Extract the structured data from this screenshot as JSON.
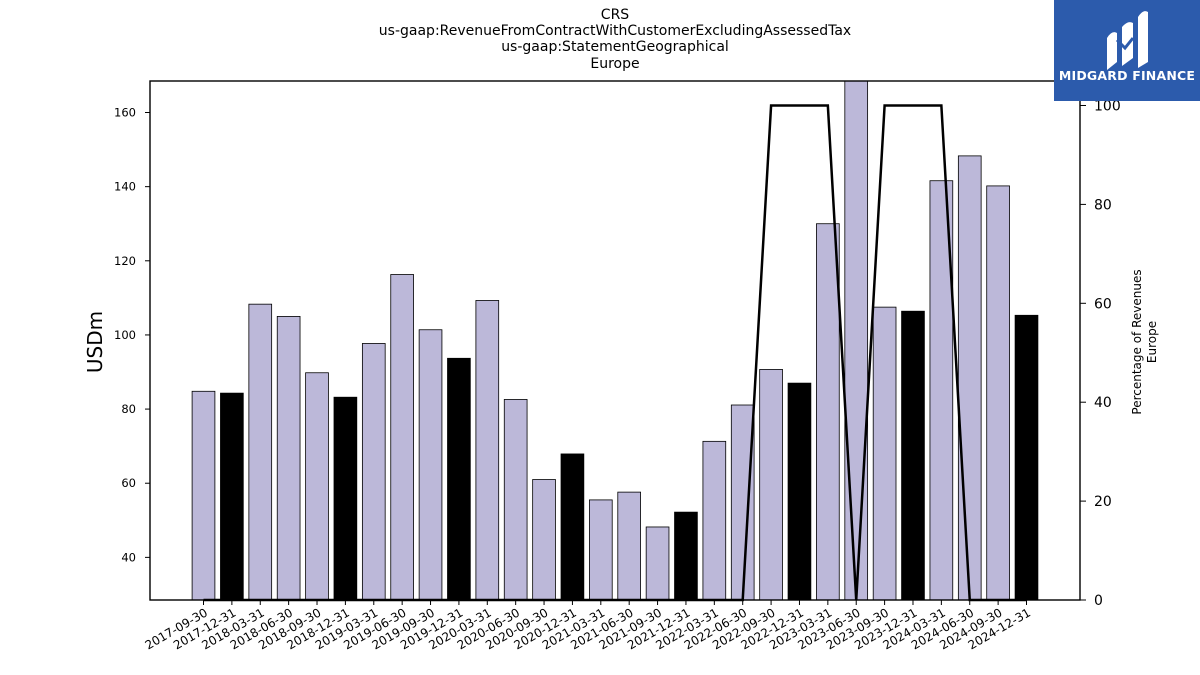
{
  "header": {
    "title_lines": [
      "CRS",
      "us-gaap:RevenueFromContractWithCustomerExcludingAssessedTax",
      "us-gaap:StatementGeographical",
      "Europe"
    ]
  },
  "logo": {
    "text": "MIDGARD FINANCE",
    "color": "#2c5bac"
  },
  "chart_data": {
    "type": "bar",
    "ylabel": "USDm",
    "y2label_lines": [
      "Percentage of Revenues",
      "Europe"
    ],
    "ylim": [
      28.5,
      168.5
    ],
    "y_ticks": [
      40,
      60,
      80,
      100,
      120,
      140,
      160
    ],
    "y2lim": [
      0,
      100
    ],
    "y2_ticks": [
      0,
      20,
      40,
      60,
      80,
      100
    ],
    "colors": {
      "quarter": "#bcb8d9",
      "year_end": "#000000",
      "line": "#000000"
    },
    "categories": [
      "2017-09-30",
      "2017-12-31",
      "2018-03-31",
      "2018-06-30",
      "2018-09-30",
      "2018-12-31",
      "2019-03-31",
      "2019-06-30",
      "2019-09-30",
      "2019-12-31",
      "2020-03-31",
      "2020-06-30",
      "2020-09-30",
      "2020-12-31",
      "2021-03-31",
      "2021-06-30",
      "2021-09-30",
      "2021-12-31",
      "2022-03-31",
      "2022-06-30",
      "2022-09-30",
      "2022-12-31",
      "2023-03-31",
      "2023-06-30",
      "2023-09-30",
      "2023-12-31",
      "2024-03-31",
      "2024-06-30",
      "2024-09-30",
      "2024-12-31"
    ],
    "series": [
      {
        "values": [
          84.8,
          84.3,
          108.3,
          105.0,
          89.8,
          83.2,
          97.7,
          116.3,
          101.4,
          93.7,
          109.3,
          82.6,
          61.0,
          67.9,
          55.5,
          57.6,
          48.2,
          52.2,
          71.3,
          81.1,
          90.7,
          87.0,
          130.0,
          168.5,
          107.5,
          106.4,
          141.6,
          148.3,
          140.2,
          105.3
        ],
        "year_end": [
          false,
          true,
          false,
          false,
          false,
          true,
          false,
          false,
          false,
          true,
          false,
          false,
          false,
          true,
          false,
          false,
          false,
          true,
          false,
          false,
          false,
          true,
          false,
          false,
          false,
          true,
          false,
          false,
          false,
          true
        ]
      },
      {
        "axis": "right",
        "type": "line",
        "values": [
          0,
          0,
          0,
          0,
          0,
          0,
          0,
          0,
          0,
          0,
          0,
          0,
          0,
          0,
          0,
          0,
          0,
          0,
          0,
          0,
          100,
          100,
          100,
          0,
          100,
          100,
          100,
          0,
          0,
          0
        ]
      }
    ]
  }
}
